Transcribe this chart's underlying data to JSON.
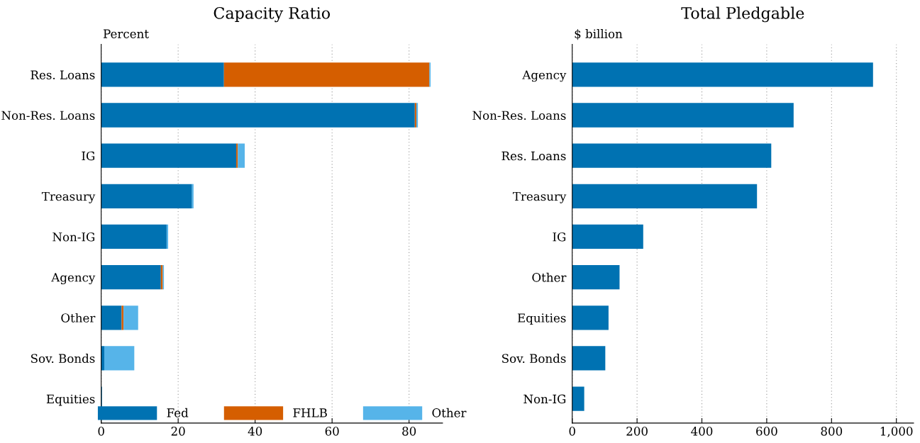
{
  "chart_data": [
    {
      "type": "bar",
      "orientation": "horizontal",
      "stacked": true,
      "title": "Capacity Ratio",
      "ylabel": "Percent",
      "categories": [
        "Res. Loans",
        "Non-Res. Loans",
        "IG",
        "Treasury",
        "Non-IG",
        "Agency",
        "Other",
        "Sov. Bonds",
        "Equities"
      ],
      "series": [
        {
          "name": "Fed",
          "color": "#0072b2",
          "values": [
            31.9,
            81.5,
            35.1,
            23.6,
            17.0,
            15.5,
            5.3,
            0.8,
            0.2
          ]
        },
        {
          "name": "FHLB",
          "color": "#d55e00",
          "values": [
            53.4,
            0.4,
            0.4,
            0,
            0,
            0.5,
            0.5,
            0,
            0
          ]
        },
        {
          "name": "Other",
          "color": "#56b4e9",
          "values": [
            0.3,
            0.4,
            1.8,
            0.4,
            0.4,
            0.3,
            3.8,
            7.8,
            0
          ]
        }
      ],
      "xlim": [
        0,
        88.7
      ],
      "xticks": [
        0,
        20,
        40,
        60,
        80
      ],
      "grid": "x",
      "legend": "bottom"
    },
    {
      "type": "bar",
      "orientation": "horizontal",
      "title": "Total Pledgable",
      "ylabel": "$ billion",
      "categories": [
        "Agency",
        "Non-Res. Loans",
        "Res. Loans",
        "Treasury",
        "IG",
        "Other",
        "Equities",
        "Sov. Bonds",
        "Non-IG"
      ],
      "series": [
        {
          "color": "#0072b2",
          "values": [
            928,
            683,
            614,
            570,
            219,
            146,
            112,
            102,
            37
          ]
        }
      ],
      "xlim": [
        0,
        1053
      ],
      "xticks": [
        0,
        200,
        400,
        600,
        800,
        {
          "value": 1000,
          "label": "1,000"
        }
      ],
      "grid": "x"
    }
  ]
}
